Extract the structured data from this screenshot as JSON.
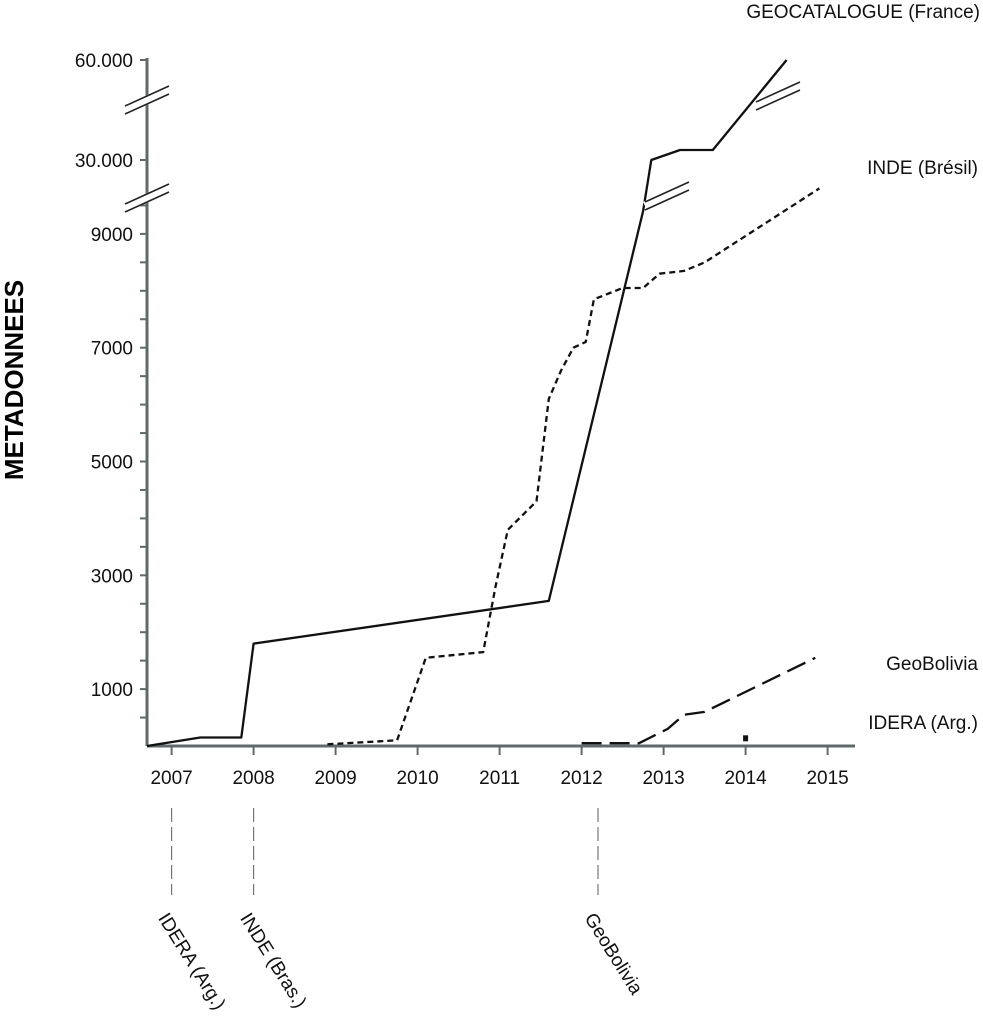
{
  "chart_data": {
    "type": "line",
    "title": "",
    "xlabel": "",
    "ylabel": "METADONNEES",
    "x_ticks": [
      "2007",
      "2008",
      "2009",
      "2010",
      "2011",
      "2012",
      "2013",
      "2014",
      "2015"
    ],
    "y_ticks": [
      "1000",
      "3000",
      "5000",
      "7000",
      "9000",
      "30.000",
      "60.000"
    ],
    "y_axis_breaks": true,
    "grid": false,
    "series": [
      {
        "name": "GEOCATALOGUE (France)",
        "style": "solid",
        "color": "#111111",
        "points": [
          [
            2006.7,
            0
          ],
          [
            2007.35,
            150
          ],
          [
            2007.85,
            150
          ],
          [
            2008.0,
            1800
          ],
          [
            2011.6,
            2550
          ],
          [
            2012.75,
            9400
          ],
          [
            2012.85,
            30000
          ],
          [
            2013.2,
            33000
          ],
          [
            2013.6,
            33000
          ],
          [
            2014.5,
            60000
          ]
        ]
      },
      {
        "name": "INDE (Brésil)",
        "style": "short-dash",
        "color": "#111111",
        "points": [
          [
            2008.9,
            30
          ],
          [
            2009.75,
            100
          ],
          [
            2010.1,
            1550
          ],
          [
            2010.8,
            1650
          ],
          [
            2010.95,
            2800
          ],
          [
            2011.1,
            3800
          ],
          [
            2011.45,
            4300
          ],
          [
            2011.6,
            6100
          ],
          [
            2011.75,
            6600
          ],
          [
            2011.9,
            7000
          ],
          [
            2012.05,
            7100
          ],
          [
            2012.15,
            7850
          ],
          [
            2012.5,
            8050
          ],
          [
            2012.75,
            8050
          ],
          [
            2012.95,
            8300
          ],
          [
            2013.25,
            8350
          ],
          [
            2013.5,
            8500
          ],
          [
            2014.9,
            9800
          ]
        ]
      },
      {
        "name": "GeoBolivia",
        "style": "long-dash",
        "color": "#111111",
        "points": [
          [
            2012.0,
            50
          ],
          [
            2012.7,
            50
          ],
          [
            2013.05,
            300
          ],
          [
            2013.25,
            550
          ],
          [
            2013.5,
            600
          ],
          [
            2014.85,
            1550
          ]
        ]
      },
      {
        "name": "IDERA (Arg.)",
        "style": "marker",
        "color": "#111111",
        "points": [
          [
            2014.0,
            100
          ]
        ]
      }
    ],
    "events": [
      {
        "label": "IDERA (Arg.)",
        "x": 2007.0
      },
      {
        "label": "INDE (Bras.)",
        "x": 2008.0
      },
      {
        "label": "GeoBolivia",
        "x": 2012.2
      }
    ]
  }
}
